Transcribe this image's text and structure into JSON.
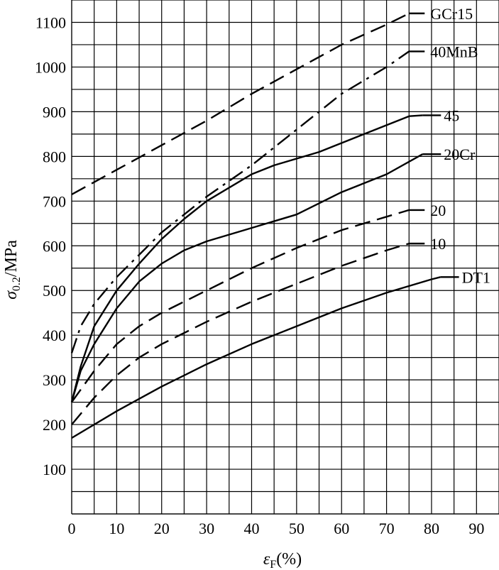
{
  "chart_data": {
    "type": "line",
    "xlabel": {
      "symbol": "ε",
      "sub": "F",
      "unit": "(%)"
    },
    "ylabel": {
      "symbol": "σ",
      "sub": "0.2",
      "unit": "/MPa"
    },
    "xlim": [
      0,
      95
    ],
    "ylim": [
      0,
      1150
    ],
    "x_ticks": [
      0,
      10,
      20,
      30,
      40,
      50,
      60,
      70,
      80,
      90
    ],
    "y_ticks": [
      100,
      200,
      300,
      400,
      500,
      600,
      700,
      800,
      900,
      1000,
      1100
    ],
    "grid": true,
    "series": [
      {
        "name": "GCr15",
        "style": "dashed",
        "x": [
          0,
          10,
          20,
          30,
          40,
          50,
          60,
          70,
          75
        ],
        "y": [
          715,
          770,
          825,
          880,
          940,
          995,
          1050,
          1095,
          1120
        ]
      },
      {
        "name": "40MnB",
        "style": "dashdot",
        "x": [
          0,
          2,
          5,
          10,
          15,
          20,
          25,
          30,
          40,
          50,
          60,
          70,
          75
        ],
        "y": [
          360,
          420,
          470,
          530,
          580,
          630,
          670,
          710,
          780,
          860,
          940,
          1000,
          1035
        ]
      },
      {
        "name": "45",
        "style": "solid",
        "x": [
          0,
          2,
          5,
          10,
          15,
          20,
          25,
          30,
          40,
          45,
          55,
          65,
          75,
          78
        ],
        "y": [
          250,
          330,
          420,
          500,
          560,
          615,
          660,
          700,
          760,
          780,
          810,
          850,
          890,
          892
        ]
      },
      {
        "name": "20Cr",
        "style": "solid",
        "x": [
          0,
          2,
          5,
          10,
          15,
          20,
          25,
          30,
          40,
          50,
          60,
          70,
          78
        ],
        "y": [
          250,
          320,
          380,
          460,
          520,
          560,
          590,
          610,
          640,
          670,
          720,
          760,
          805
        ]
      },
      {
        "name": "20",
        "style": "dashed",
        "x": [
          0,
          5,
          10,
          15,
          20,
          30,
          40,
          50,
          60,
          70,
          75
        ],
        "y": [
          250,
          320,
          380,
          420,
          450,
          500,
          550,
          595,
          635,
          665,
          680
        ]
      },
      {
        "name": "10",
        "style": "dashed",
        "x": [
          0,
          5,
          10,
          15,
          20,
          30,
          40,
          50,
          60,
          70,
          75
        ],
        "y": [
          200,
          260,
          310,
          350,
          380,
          430,
          475,
          515,
          555,
          590,
          605
        ]
      },
      {
        "name": "DT1",
        "style": "solid",
        "x": [
          0,
          10,
          20,
          30,
          40,
          50,
          60,
          70,
          80,
          82
        ],
        "y": [
          170,
          230,
          285,
          335,
          380,
          420,
          460,
          495,
          525,
          530
        ]
      }
    ]
  }
}
